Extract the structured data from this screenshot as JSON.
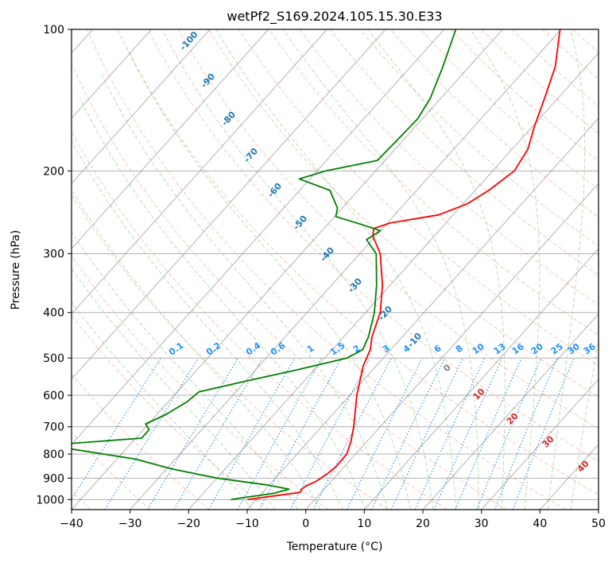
{
  "chart_data": {
    "type": "line",
    "title": "wetPf2_S169.2024.105.15.30.E33",
    "xlabel": "Temperature (°C)",
    "ylabel": "Pressure (hPa)",
    "xlim": [
      -40,
      50
    ],
    "ylim": [
      1050,
      100
    ],
    "x_ticks": [
      -40,
      -30,
      -20,
      -10,
      0,
      10,
      20,
      30,
      40,
      50
    ],
    "y_ticks": [
      100,
      200,
      300,
      400,
      500,
      600,
      700,
      800,
      900,
      1000
    ],
    "y_scale": "log",
    "grid": true,
    "skew_slope_degC_per_pixel": 0.1217,
    "colors": {
      "temperature": "#ff0000",
      "dewpoint": "#008000",
      "isotherm": "#808080",
      "dry_adiabat": "#ff7f50",
      "moist_adiabat": "#2ca02c",
      "mixing_ratio": "#1e90ff",
      "isotherm_label": "#1f77b4",
      "moist_label": "#d62728",
      "zero_label": "#808080"
    },
    "series": [
      {
        "name": "",
        "color": "#ff0000",
        "points": [
          [
            1000,
            -11.5
          ],
          [
            980,
            -7
          ],
          [
            965,
            -3.6
          ],
          [
            950,
            -3.8
          ],
          [
            935,
            -3.6
          ],
          [
            915,
            -2.6
          ],
          [
            880,
            -1.8
          ],
          [
            850,
            -1.4
          ],
          [
            800,
            -1.5
          ],
          [
            750,
            -2.8
          ],
          [
            700,
            -4.5
          ],
          [
            600,
            -8.8
          ],
          [
            520,
            -12.2
          ],
          [
            480,
            -13.5
          ],
          [
            450,
            -15.2
          ],
          [
            400,
            -17.5
          ],
          [
            350,
            -21.3
          ],
          [
            300,
            -26.5
          ],
          [
            275,
            -30.5
          ],
          [
            265,
            -31.5
          ],
          [
            258,
            -29.5
          ],
          [
            248,
            -22.5
          ],
          [
            235,
            -19.3
          ],
          [
            220,
            -17.7
          ],
          [
            200,
            -16.3
          ],
          [
            180,
            -17.3
          ],
          [
            160,
            -19.8
          ],
          [
            140,
            -22.3
          ],
          [
            120,
            -25.3
          ],
          [
            100,
            -30.2
          ]
        ]
      },
      {
        "name": "",
        "color": "#008000",
        "points": [
          [
            1000,
            -14.3
          ],
          [
            990,
            -12.5
          ],
          [
            970,
            -8
          ],
          [
            950,
            -6
          ],
          [
            930,
            -10.5
          ],
          [
            900,
            -20
          ],
          [
            860,
            -29.2
          ],
          [
            820,
            -36.8
          ],
          [
            780,
            -49.5
          ],
          [
            760,
            -50.5
          ],
          [
            740,
            -39
          ],
          [
            710,
            -39
          ],
          [
            690,
            -40.5
          ],
          [
            660,
            -38.5
          ],
          [
            620,
            -36.8
          ],
          [
            590,
            -36.3
          ],
          [
            560,
            -30
          ],
          [
            530,
            -23
          ],
          [
            500,
            -16.2
          ],
          [
            480,
            -14.8
          ],
          [
            450,
            -15.8
          ],
          [
            400,
            -18.5
          ],
          [
            350,
            -22.3
          ],
          [
            300,
            -27.2
          ],
          [
            280,
            -31
          ],
          [
            268,
            -30
          ],
          [
            260,
            -34.2
          ],
          [
            250,
            -39.8
          ],
          [
            240,
            -40.8
          ],
          [
            220,
            -44.8
          ],
          [
            208,
            -51.8
          ],
          [
            200,
            -48.5
          ],
          [
            190,
            -41.3
          ],
          [
            170,
            -41
          ],
          [
            155,
            -40.8
          ],
          [
            140,
            -41.8
          ],
          [
            120,
            -44.5
          ],
          [
            100,
            -48
          ]
        ]
      }
    ],
    "isotherm_labels": [
      "-100",
      "-90",
      "-80",
      "-70",
      "-60",
      "-50",
      "-40",
      "-30",
      "-20",
      "-10"
    ],
    "mixing_ratio_labels": [
      "0.1",
      "0.2",
      "0.4",
      "0.6",
      "1",
      "1.5",
      "2",
      "3",
      "4",
      "6",
      "8",
      "10",
      "13",
      "16",
      "20",
      "25",
      "30",
      "36"
    ],
    "moist_adiabat_labels": [
      "0",
      "10",
      "20",
      "30",
      "40"
    ]
  }
}
